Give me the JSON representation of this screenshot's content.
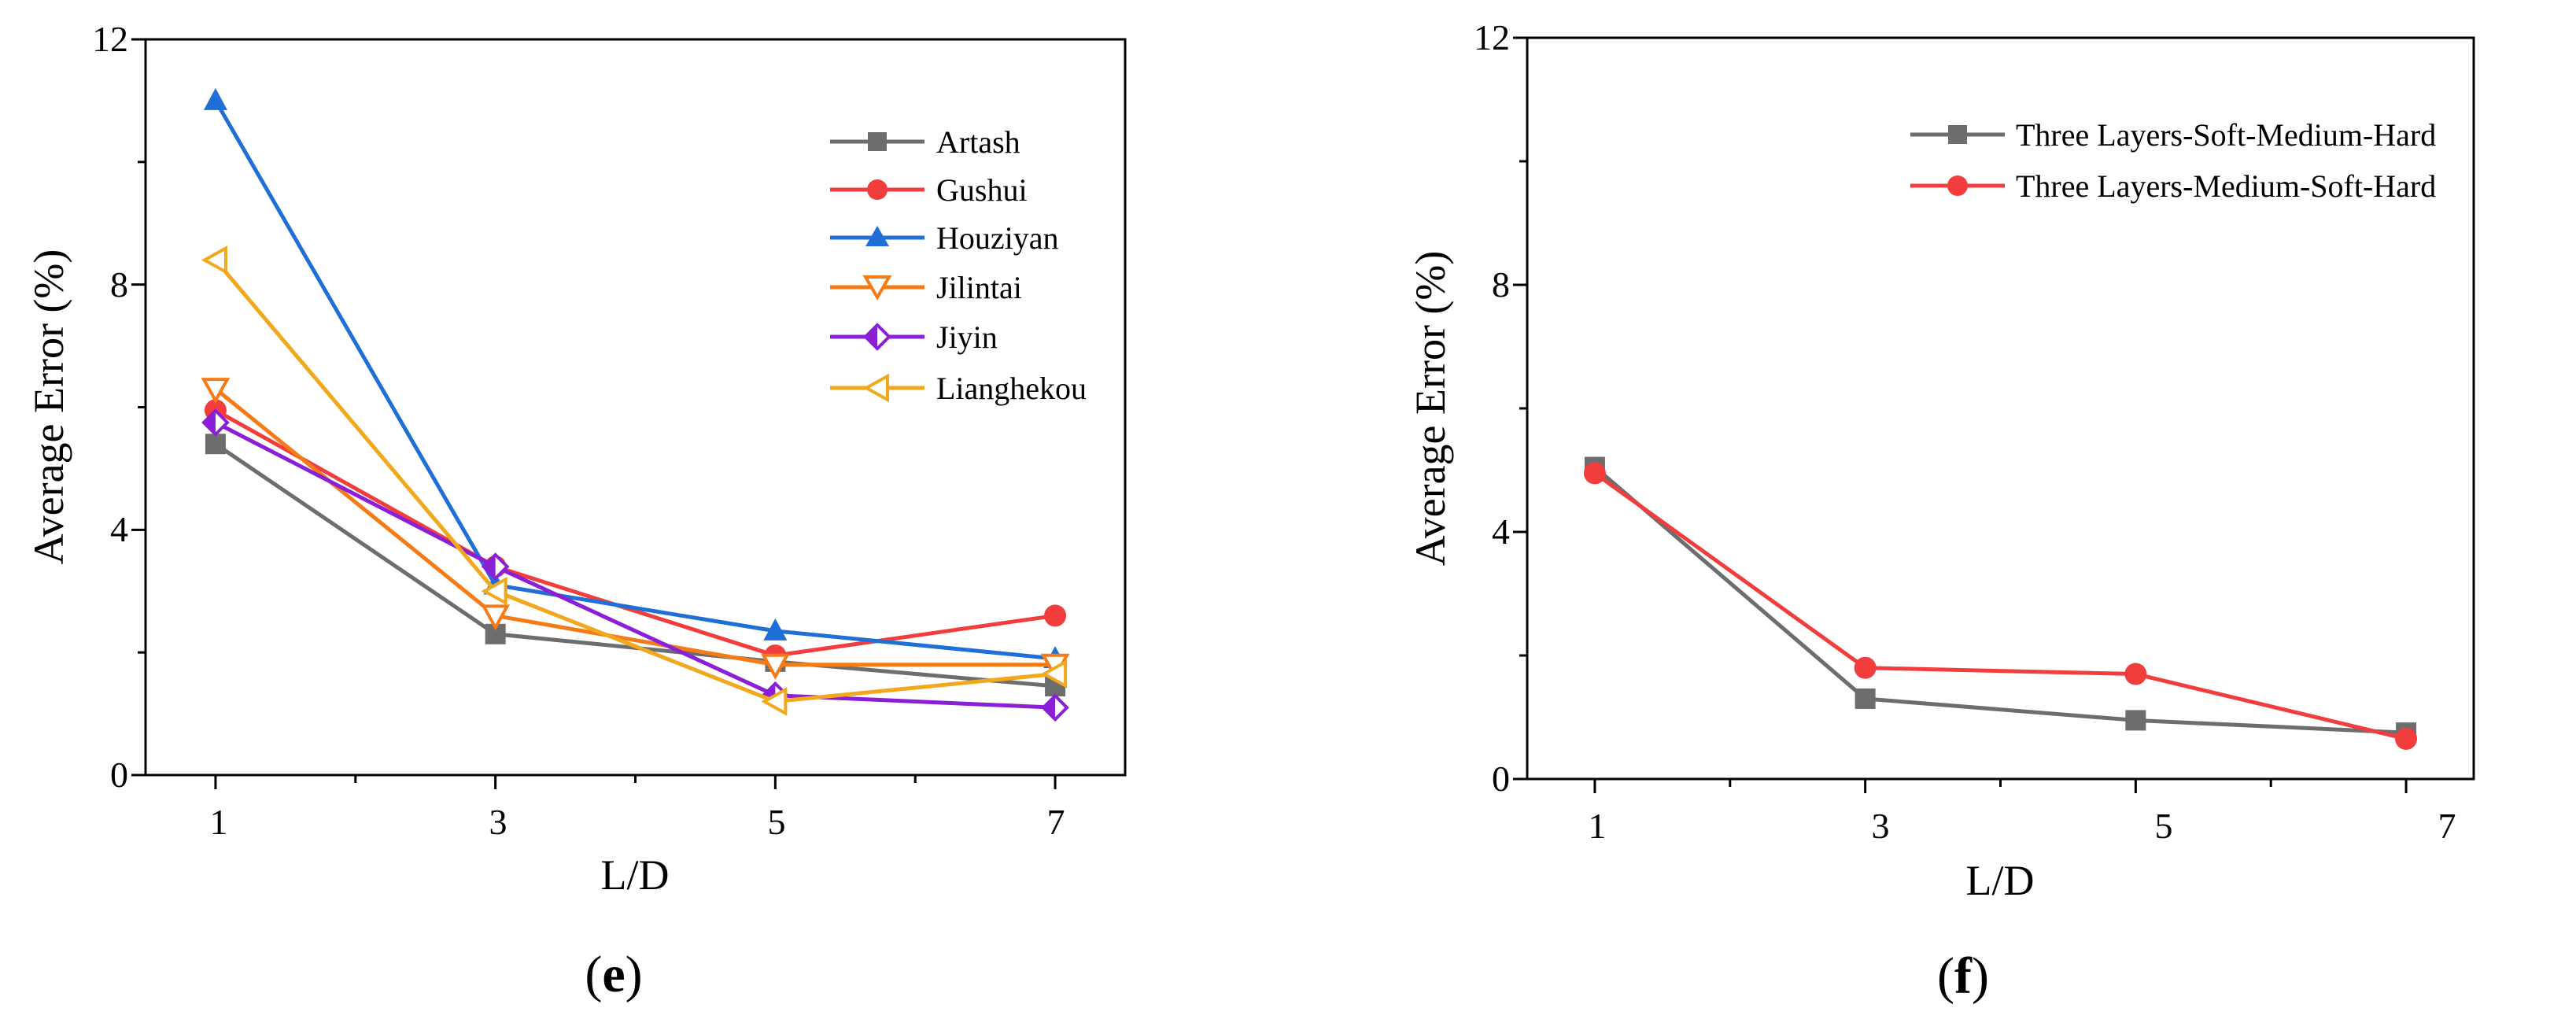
{
  "chart_data": [
    {
      "type": "line",
      "panel_label": {
        "open": "(",
        "letter": "e",
        "close": ")"
      },
      "xlabel": "L/D",
      "ylabel": "Average Error (%)",
      "x": [
        1,
        3,
        5,
        7
      ],
      "xticks": [
        "1",
        "3",
        "5",
        "7"
      ],
      "yticks": [
        "0",
        "4",
        "8",
        "12"
      ],
      "xlim": [
        0.5,
        7.5
      ],
      "ylim": [
        0,
        12
      ],
      "grid": false,
      "legend_position": "top-right",
      "series": [
        {
          "name": "Artash",
          "color": "#6d6d6d",
          "marker": "square",
          "values": [
            5.4,
            2.3,
            1.85,
            1.45
          ]
        },
        {
          "name": "Gushui",
          "color": "#f23d3d",
          "marker": "circle",
          "values": [
            5.95,
            3.4,
            1.95,
            2.6
          ]
        },
        {
          "name": "Houziyan",
          "color": "#1f6fd6",
          "marker": "triangle-up",
          "values": [
            11.0,
            3.1,
            2.35,
            1.9
          ]
        },
        {
          "name": "Jilintai",
          "color": "#f47b16",
          "marker": "triangle-down-open",
          "values": [
            6.3,
            2.6,
            1.8,
            1.8
          ]
        },
        {
          "name": "Jiyin",
          "color": "#8b1fd6",
          "marker": "diamond-half",
          "values": [
            5.75,
            3.4,
            1.3,
            1.1
          ]
        },
        {
          "name": "Lianghekou",
          "color": "#f2a81c",
          "marker": "triangle-left-open",
          "values": [
            8.4,
            3.0,
            1.2,
            1.65
          ]
        }
      ]
    },
    {
      "type": "line",
      "panel_label": {
        "open": "(",
        "letter": "f",
        "close": ")"
      },
      "xlabel": "L/D",
      "ylabel": "Average Error (%)",
      "x": [
        1,
        3,
        5,
        7
      ],
      "xticks": [
        "1",
        "3",
        "5",
        "7"
      ],
      "yticks": [
        "0",
        "4",
        "8",
        "12"
      ],
      "xlim": [
        0.5,
        7.5
      ],
      "ylim": [
        0,
        12
      ],
      "grid": false,
      "legend_position": "top-right",
      "series": [
        {
          "name": "Three Layers-Soft-Medium-Hard",
          "color": "#6d6d6d",
          "marker": "square",
          "values": [
            5.05,
            1.3,
            0.95,
            0.75
          ]
        },
        {
          "name": "Three Layers-Medium-Soft-Hard",
          "color": "#f23d3d",
          "marker": "circle",
          "values": [
            4.95,
            1.8,
            1.7,
            0.65
          ]
        }
      ]
    }
  ]
}
